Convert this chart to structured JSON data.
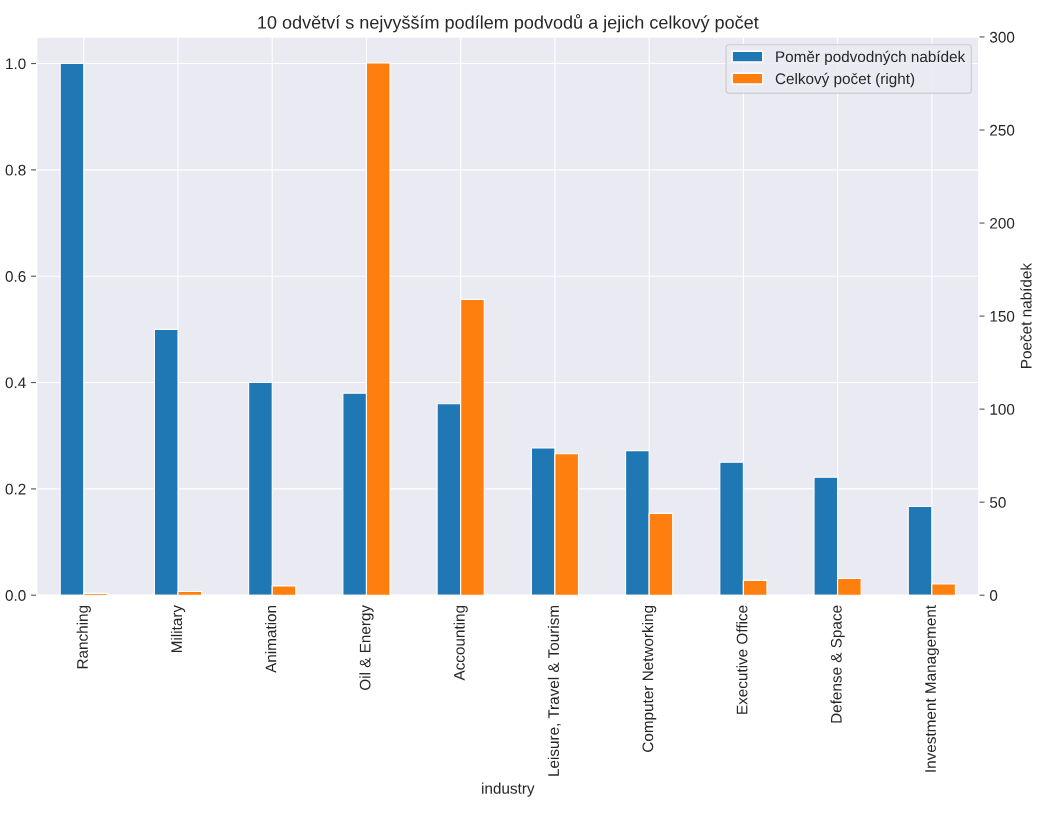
{
  "chart_data": {
    "type": "bar",
    "title": "10 odvětví s nejvyšším podílem podvodů a jejich celkový počet",
    "xlabel": "industry",
    "y2label": "Poečet nabídek",
    "categories": [
      "Ranching",
      "Military",
      "Animation",
      "Oil & Energy",
      "Accounting",
      "Leisure, Travel & Tourism",
      "Computer Networking",
      "Executive Office",
      "Defense & Space",
      "Investment Management"
    ],
    "series": [
      {
        "name": "Poměr podvodných nabídek",
        "color": "#1f77b4",
        "values": [
          1.0,
          0.5,
          0.4,
          0.38,
          0.36,
          0.277,
          0.272,
          0.25,
          0.222,
          0.167
        ]
      },
      {
        "name": "Celkový počet (right)",
        "color": "#ff7f0e",
        "axis": "y2",
        "values": [
          1,
          2,
          5,
          286,
          159,
          76,
          44,
          8,
          9,
          6
        ]
      }
    ],
    "ylim": [
      0,
      1.05
    ],
    "yticks": [
      {
        "value": 0,
        "label": "0.0"
      },
      {
        "value": 0.2,
        "label": "0.2"
      },
      {
        "value": 0.4,
        "label": "0.4"
      },
      {
        "value": 0.6,
        "label": "0.6"
      },
      {
        "value": 0.8,
        "label": "0.8"
      },
      {
        "value": 1.0,
        "label": "1.0"
      }
    ],
    "y2lim": [
      0,
      300
    ],
    "y2ticks": [
      0,
      50,
      100,
      150,
      200,
      250,
      300
    ],
    "grid": true,
    "legend": "top right"
  }
}
